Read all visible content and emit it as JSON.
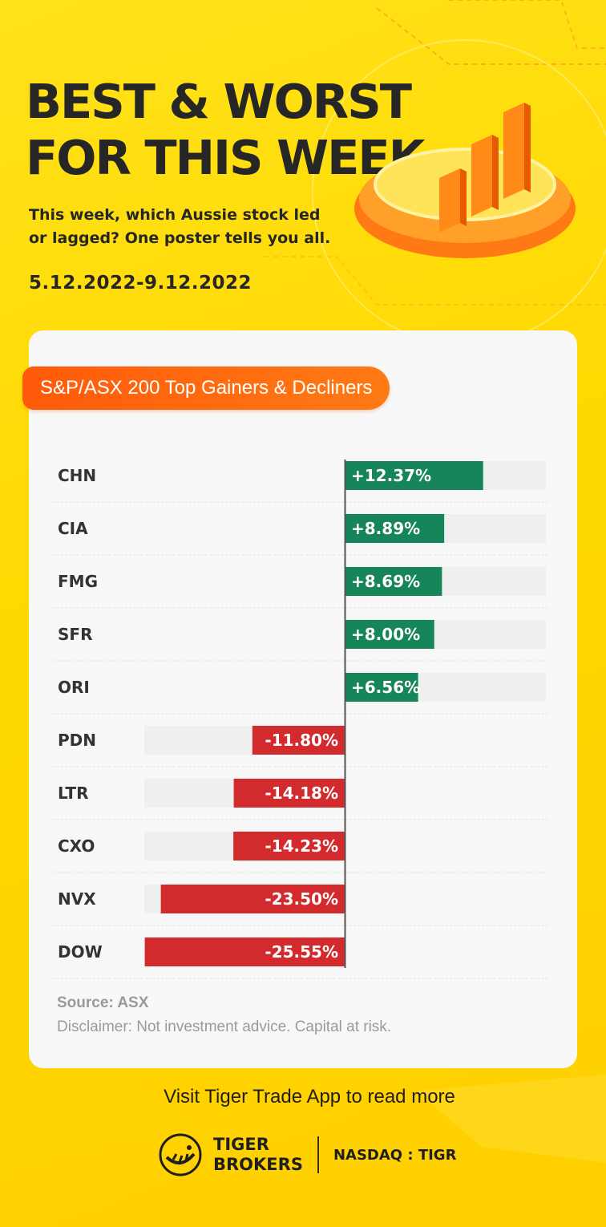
{
  "header": {
    "title_line1": "BEST & WORST",
    "title_line2": "FOR THIS WEEK",
    "subtitle_line1": "This week, which Aussie stock led",
    "subtitle_line2": "or lagged? One poster tells you all.",
    "date_range": "5.12.2022-9.12.2022"
  },
  "card": {
    "tag": "S&P/ASX 200 Top Gainers & Decliners",
    "source": "Source: ASX",
    "disclaimer": "Disclaimer: Not investment advice. Capital at risk."
  },
  "chart_data": {
    "type": "bar",
    "title": "S&P/ASX 200 Top Gainers & Decliners",
    "categories": [
      "CHN",
      "CIA",
      "FMG",
      "SFR",
      "ORI",
      "PDN",
      "LTR",
      "CXO",
      "NVX",
      "DOW"
    ],
    "values": [
      12.37,
      8.89,
      8.69,
      8.0,
      6.56,
      -11.8,
      -14.18,
      -14.23,
      -23.5,
      -25.55
    ],
    "labels": [
      "+12.37%",
      "+8.89%",
      "+8.69%",
      "+8.00%",
      "+6.56%",
      "-11.80%",
      "-14.18%",
      "-14.23%",
      "-23.50%",
      "-25.55%"
    ],
    "unit": "%",
    "colors": {
      "positive": "#17855a",
      "negative": "#d32a2e",
      "track": "#efefef",
      "axis": "#555555",
      "gridline": "#e2e2e2"
    }
  },
  "footer": {
    "cta": "Visit Tiger Trade App to read more",
    "brand_line1": "TIGER",
    "brand_line2": "BROKERS",
    "nasdaq": "NASDAQ : TIGR"
  }
}
